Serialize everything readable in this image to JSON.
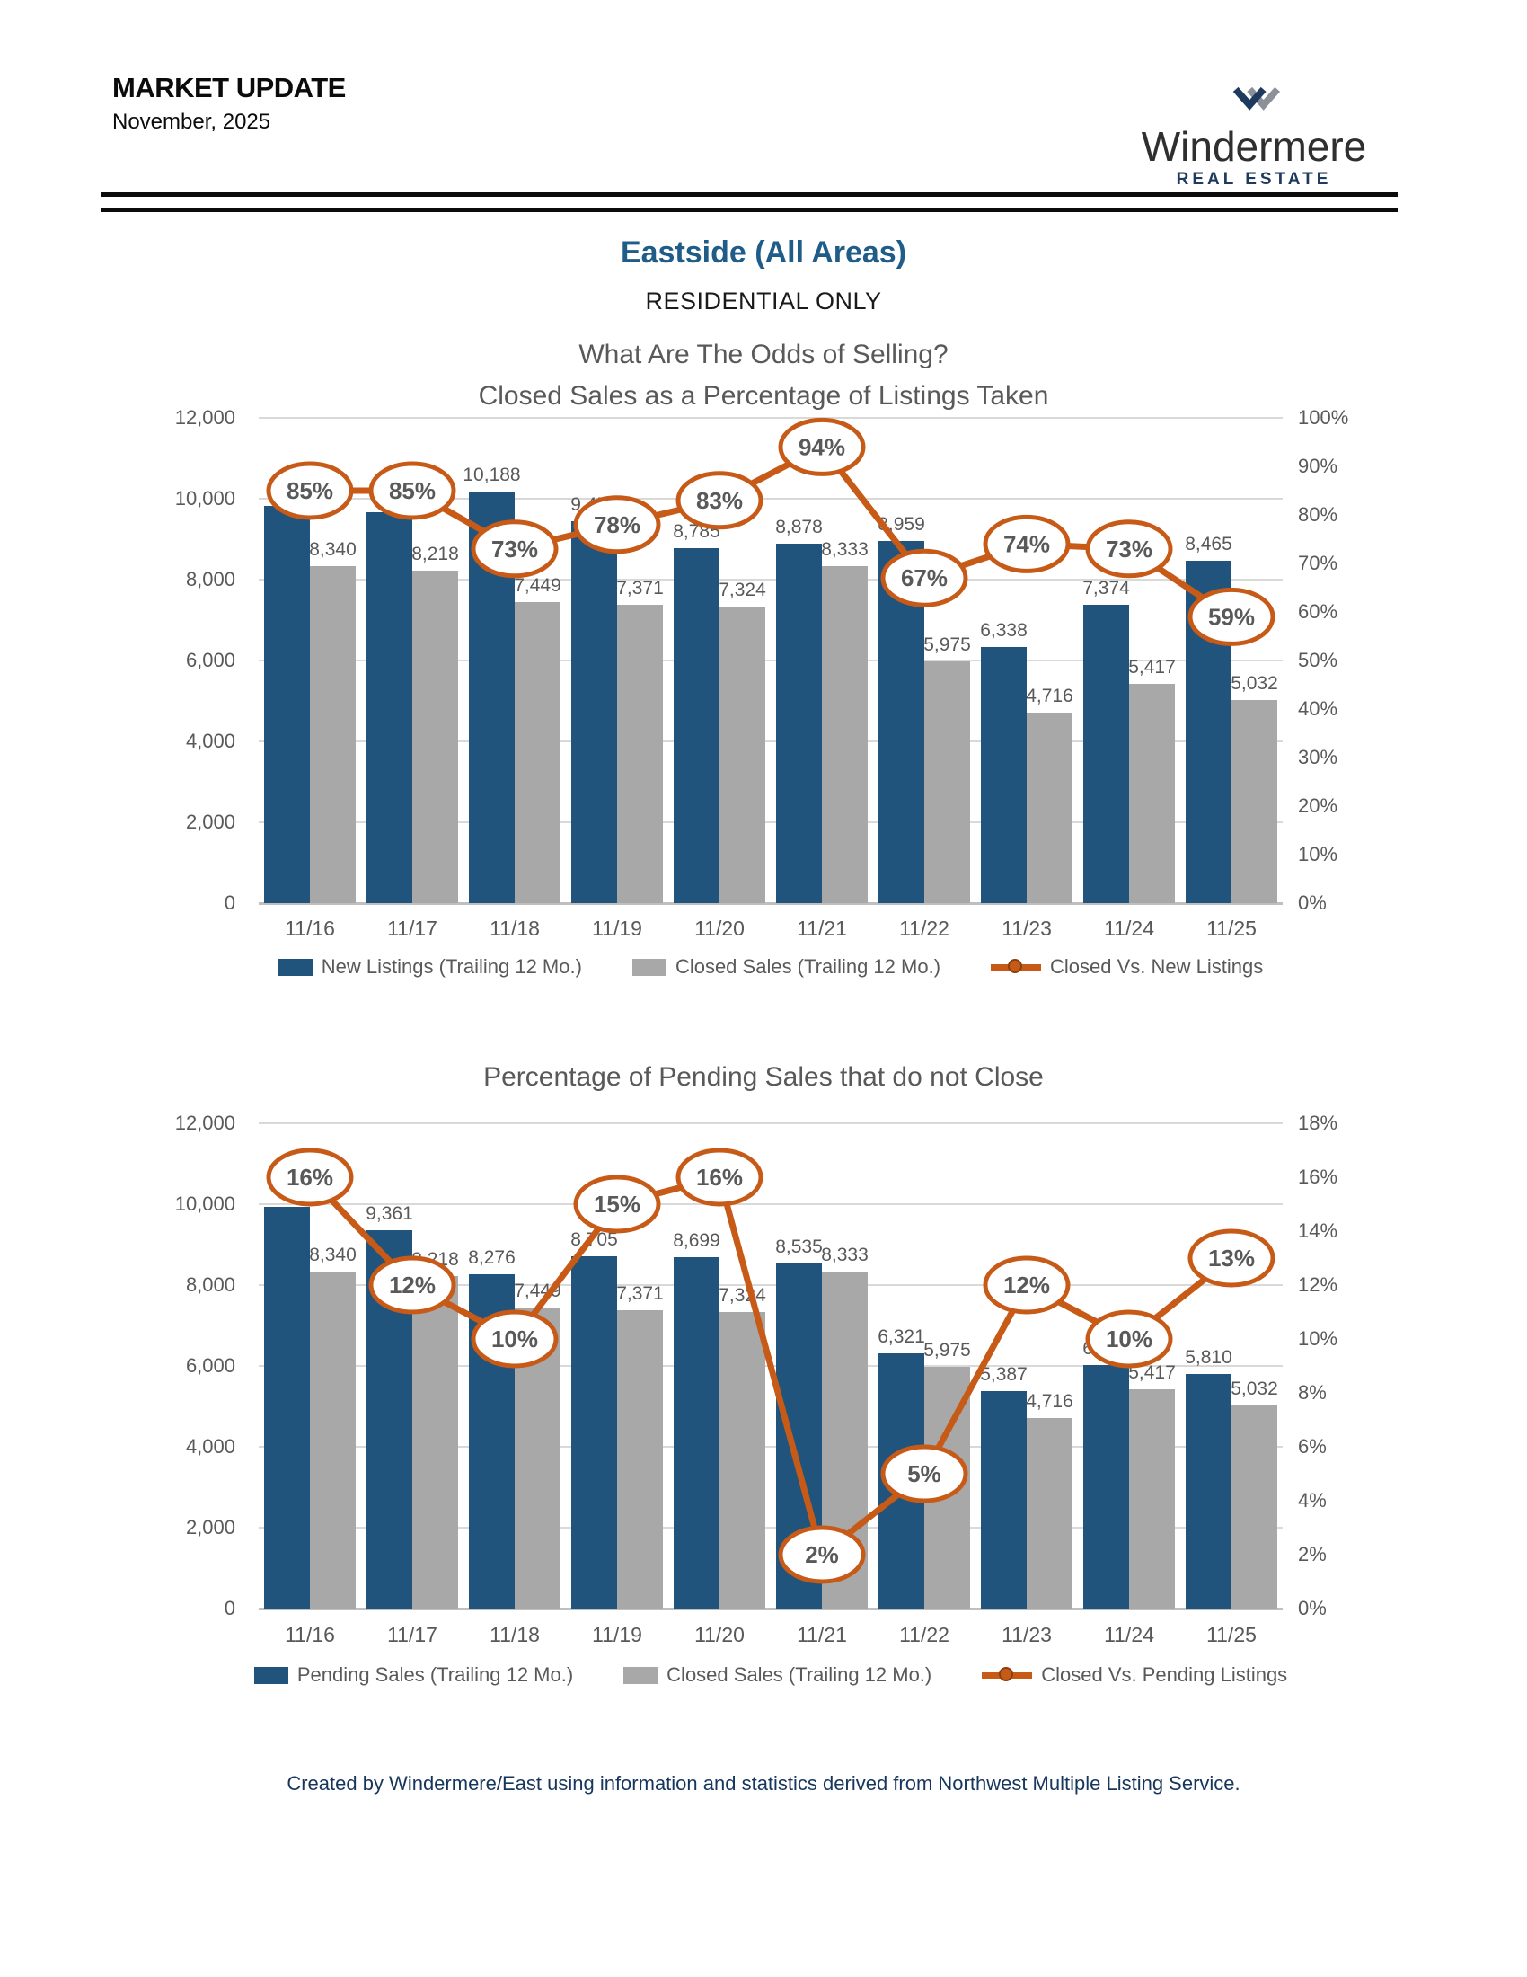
{
  "header": {
    "title": "MARKET UPDATE",
    "date": "November, 2025",
    "logo": {
      "brand": "Windermere",
      "sub": "REAL ESTATE"
    }
  },
  "page": {
    "region_title": "Eastside (All Areas)",
    "subtitle": "RESIDENTIAL ONLY",
    "footer": "Created by Windermere/East using information and statistics derived from Northwest Multiple Listing Service."
  },
  "colors": {
    "bar_blue": "#20547C",
    "bar_gray": "#A8A8A8",
    "line_orange": "#C85A17",
    "line_orange_dark": "#8a3f0e",
    "label_gray": "#595959",
    "title_blue": "#1F5C87",
    "footer_navy": "#17365D",
    "logo_navy": "#1F3A5F",
    "logo_gray": "#8C9199"
  },
  "chart_data": [
    {
      "type": "bar",
      "title_lines": [
        "What Are The Odds of Selling?",
        "Closed Sales as a Percentage of Listings Taken"
      ],
      "categories": [
        "11/16",
        "11/17",
        "11/18",
        "11/19",
        "11/20",
        "11/21",
        "11/22",
        "11/23",
        "11/24",
        "11/25"
      ],
      "series": [
        {
          "name": "New Listings (Trailing 12 Mo.)",
          "kind": "bar",
          "color_key": "bar_blue",
          "values": [
            9812,
            9668,
            10188,
            9454,
            8785,
            8878,
            8959,
            6338,
            7374,
            8465
          ],
          "labels": [
            "",
            "",
            "10,188",
            "9,454",
            "8,785",
            "8,878",
            "8,959",
            "6,338",
            "7,374",
            "8,465"
          ]
        },
        {
          "name": "Closed Sales (Trailing 12 Mo.)",
          "kind": "bar",
          "color_key": "bar_gray",
          "values": [
            8340,
            8218,
            7449,
            7371,
            7324,
            8333,
            5975,
            4716,
            5417,
            5032
          ],
          "labels": [
            "8,340",
            "8,218",
            "7,449",
            "7,371",
            "7,324",
            "8,333",
            "5,975",
            "4,716",
            "5,417",
            "5,032"
          ]
        },
        {
          "name": "Closed Vs. New Listings",
          "kind": "line",
          "color_key": "line_orange",
          "values": [
            85,
            85,
            73,
            78,
            83,
            94,
            67,
            74,
            73,
            59
          ],
          "labels": [
            "85%",
            "85%",
            "73%",
            "78%",
            "83%",
            "94%",
            "67%",
            "74%",
            "73%",
            "59%"
          ]
        }
      ],
      "left_axis": {
        "min": 0,
        "max": 12000,
        "ticks": [
          "12,000",
          "10,000",
          "8,000",
          "6,000",
          "4,000",
          "2,000",
          "0"
        ]
      },
      "right_axis": {
        "min": 0,
        "max": 100,
        "ticks": [
          "100%",
          "90%",
          "80%",
          "70%",
          "60%",
          "50%",
          "40%",
          "30%",
          "20%",
          "10%",
          "0%"
        ]
      },
      "legend_position": "bottom",
      "grid": true
    },
    {
      "type": "bar",
      "title_lines": [
        "Percentage of Pending Sales that do not Close"
      ],
      "categories": [
        "11/16",
        "11/17",
        "11/18",
        "11/19",
        "11/20",
        "11/21",
        "11/22",
        "11/23",
        "11/24",
        "11/25"
      ],
      "series": [
        {
          "name": "Pending Sales (Trailing 12 Mo.)",
          "kind": "bar",
          "color_key": "bar_blue",
          "values": [
            9929,
            9361,
            8276,
            8705,
            8699,
            8535,
            6321,
            5387,
            6019,
            5810
          ],
          "labels": [
            "",
            "9,361",
            "8,276",
            "8,705",
            "8,699",
            "8,535",
            "6,321",
            "5,387",
            "6,019",
            "5,810"
          ]
        },
        {
          "name": "Closed Sales (Trailing 12 Mo.)",
          "kind": "bar",
          "color_key": "bar_gray",
          "values": [
            8340,
            8218,
            7449,
            7371,
            7324,
            8333,
            5975,
            4716,
            5417,
            5032
          ],
          "labels": [
            "8,340",
            "8,218",
            "7,449",
            "7,371",
            "7,324",
            "8,333",
            "5,975",
            "4,716",
            "5,417",
            "5,032"
          ]
        },
        {
          "name": "Closed Vs. Pending Listings",
          "kind": "line",
          "color_key": "line_orange",
          "values": [
            16,
            12,
            10,
            15,
            16,
            2,
            5,
            12,
            10,
            13
          ],
          "labels": [
            "16%",
            "12%",
            "10%",
            "15%",
            "16%",
            "2%",
            "5%",
            "12%",
            "10%",
            "13%"
          ]
        }
      ],
      "left_axis": {
        "min": 0,
        "max": 12000,
        "ticks": [
          "12,000",
          "10,000",
          "8,000",
          "6,000",
          "4,000",
          "2,000",
          "0"
        ]
      },
      "right_axis": {
        "min": 0,
        "max": 18,
        "ticks": [
          "18%",
          "16%",
          "14%",
          "12%",
          "10%",
          "8%",
          "6%",
          "4%",
          "2%",
          "0%"
        ]
      },
      "legend_position": "bottom",
      "grid": true
    }
  ]
}
